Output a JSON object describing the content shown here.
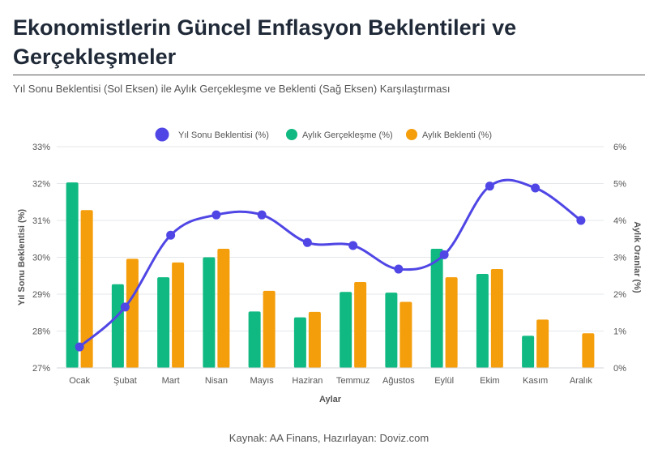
{
  "header": {
    "title": "Ekonomistlerin Güncel Enflasyon Beklentileri ve Gerçekleşmeler",
    "subtitle": "Yıl Sonu Beklentisi (Sol Eksen) ile Aylık Gerçekleşme ve Beklenti (Sağ Eksen) Karşılaştırması"
  },
  "footer": {
    "source": "Kaynak: AA Finans, Hazırlayan: Doviz.com"
  },
  "chart_data": {
    "type": "bar+line",
    "categories": [
      "Ocak",
      "Şubat",
      "Mart",
      "Nisan",
      "Mayıs",
      "Haziran",
      "Temmuz",
      "Ağustos",
      "Eylül",
      "Ekim",
      "Kasım",
      "Aralık"
    ],
    "xlabel": "Aylar",
    "ylabel_left": "Yıl Sonu Beklentisi (%)",
    "ylabel_right": "Aylık Oranlar (%)",
    "ylim_left": [
      27,
      33
    ],
    "ylim_right": [
      0,
      6
    ],
    "yticks_left": [
      "27%",
      "28%",
      "29%",
      "30%",
      "31%",
      "32%",
      "33%"
    ],
    "yticks_right": [
      "0%",
      "1%",
      "2%",
      "3%",
      "4%",
      "5%",
      "6%"
    ],
    "legend_position": "top-center",
    "series": [
      {
        "name": "Yıl Sonu Beklentisi (%)",
        "type": "line",
        "axis": "left",
        "color": "#4f46e5",
        "values": [
          27.57,
          28.65,
          30.6,
          31.15,
          31.15,
          30.4,
          30.32,
          29.68,
          30.07,
          31.93,
          31.88,
          31.0
        ]
      },
      {
        "name": "Aylık Gerçekleşme (%)",
        "type": "bar",
        "axis": "right",
        "color": "#10b981",
        "values": [
          5.03,
          2.27,
          2.46,
          3.0,
          1.53,
          1.37,
          2.06,
          2.04,
          3.23,
          2.55,
          0.87,
          null
        ]
      },
      {
        "name": "Aylık Beklenti (%)",
        "type": "bar",
        "axis": "right",
        "color": "#f59e0b",
        "values": [
          4.28,
          2.96,
          2.86,
          3.23,
          2.09,
          1.52,
          2.33,
          1.79,
          2.46,
          2.68,
          1.31,
          0.94
        ]
      }
    ]
  }
}
